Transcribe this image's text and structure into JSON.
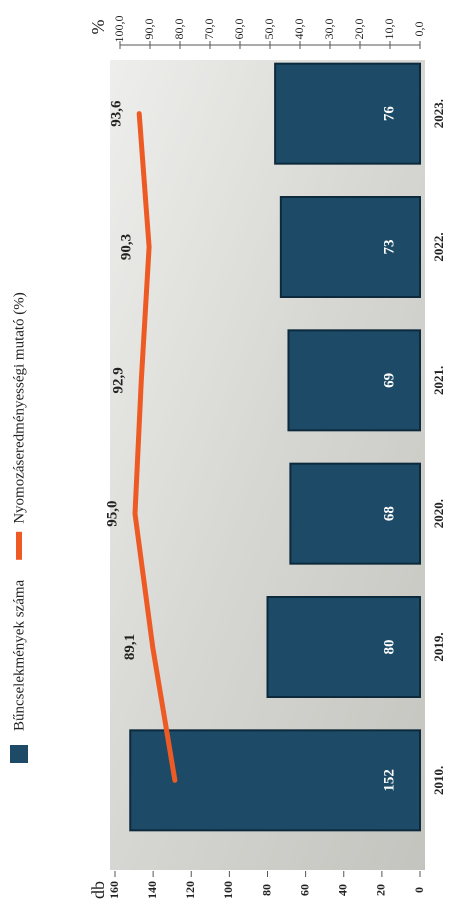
{
  "chart_data": {
    "type": "bar",
    "categories": [
      "2010.",
      "2019.",
      "2020.",
      "2021.",
      "2022.",
      "2023."
    ],
    "y_label": "db",
    "y2_label": "%",
    "series": [
      {
        "name": "Bűncselekmények száma",
        "type": "bar",
        "color": "#1d4a66",
        "values": [
          152,
          80,
          68,
          69,
          73,
          76
        ]
      },
      {
        "name": "Nyomozáseredményességi mutató (%)",
        "type": "line",
        "axis": "y2",
        "color": "#ee5a24",
        "values": [
          81.7,
          89.1,
          95.0,
          92.9,
          90.3,
          93.6
        ],
        "value_labels": [
          null,
          "89,1",
          "95,0",
          "92,9",
          "90,3",
          "93,6"
        ]
      }
    ],
    "ylim": [
      0,
      160
    ],
    "yticks": [
      0,
      20,
      40,
      60,
      80,
      100,
      120,
      140,
      160
    ],
    "y2lim": [
      0,
      100
    ],
    "y2ticks": [
      {
        "value": 0,
        "label": "0,0"
      },
      {
        "value": 10,
        "label": "10,0"
      },
      {
        "value": 20,
        "label": "20,0"
      },
      {
        "value": 30,
        "label": "30,0"
      },
      {
        "value": 40,
        "label": "40,0"
      },
      {
        "value": 50,
        "label": "50,0"
      },
      {
        "value": 60,
        "label": "60,0"
      },
      {
        "value": 70,
        "label": "70,0"
      },
      {
        "value": 80,
        "label": "80,0"
      },
      {
        "value": 90,
        "label": "90,0"
      },
      {
        "value": 100,
        "label": "100,0"
      }
    ]
  }
}
